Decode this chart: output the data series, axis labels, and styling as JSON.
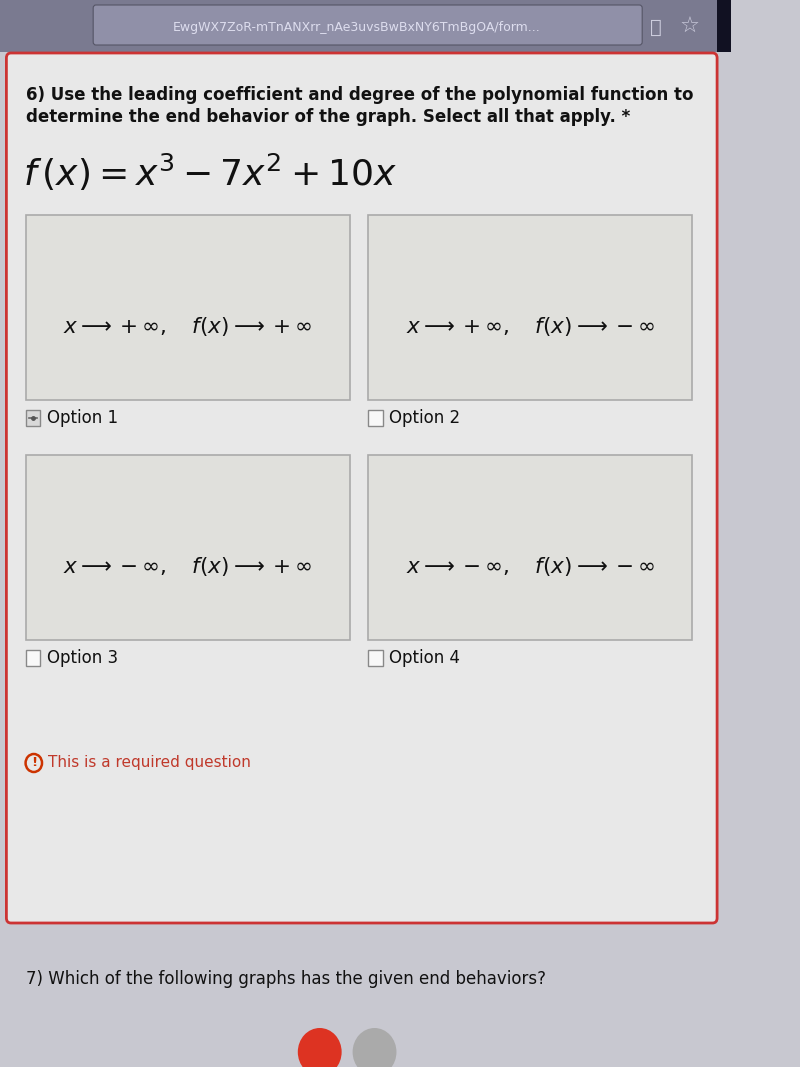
{
  "browser_bar_text": "EwgWX7ZoR-mTnANXrr_nAe3uvsBwBxNY6TmBgOA/form...",
  "question_text_line1": "6) Use the leading coefficient and degree of the polynomial function to",
  "question_text_line2": "determine the end behavior of the graph. Select all that apply. *",
  "options": [
    {
      "label": "Option 1",
      "x_dir": "+",
      "fx_dir": "+",
      "row": 0,
      "col": 0
    },
    {
      "label": "Option 2",
      "x_dir": "+",
      "fx_dir": "-",
      "row": 0,
      "col": 1
    },
    {
      "label": "Option 3",
      "x_dir": "-",
      "fx_dir": "+",
      "row": 1,
      "col": 0
    },
    {
      "label": "Option 4",
      "x_dir": "-",
      "fx_dir": "-",
      "row": 1,
      "col": 1
    }
  ],
  "required_text": "This is a required question",
  "next_question": "7) Which of the following graphs has the given end behaviors?",
  "page_bg": "#c8c8d0",
  "browser_bg": "#7a7a90",
  "browser_text_color": "#222244",
  "card_bg": "#e8e8e8",
  "card_border": "#cc3333",
  "box_bg": "#e0e0dc",
  "box_border": "#aaaaaa",
  "text_color": "#111111",
  "required_color": "#c0392b",
  "cb1_fill": "#e0e0e0",
  "cb_empty_fill": "#ffffff"
}
